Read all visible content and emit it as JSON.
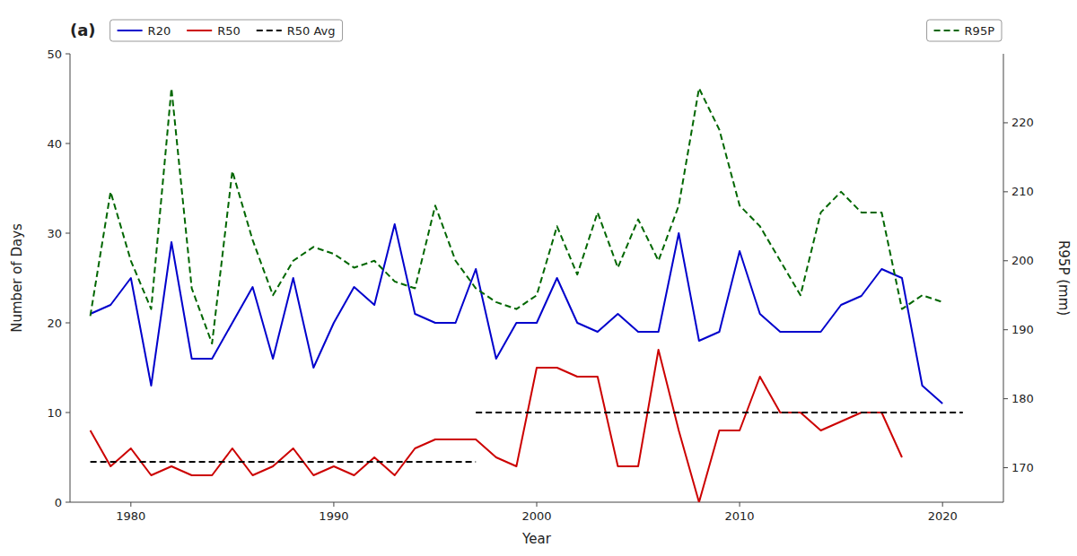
{
  "chart_data": {
    "type": "line",
    "title": "(a)",
    "xlabel": "Year",
    "ylabel": "Number of Days",
    "y2label": "R95P (mm)",
    "x": [
      1978,
      1979,
      1980,
      1981,
      1982,
      1983,
      1984,
      1985,
      1986,
      1987,
      1988,
      1989,
      1990,
      1991,
      1992,
      1993,
      1994,
      1995,
      1996,
      1997,
      1998,
      1999,
      2000,
      2001,
      2002,
      2003,
      2004,
      2005,
      2006,
      2007,
      2008,
      2009,
      2010,
      2011,
      2012,
      2013,
      2014,
      2015,
      2016,
      2017,
      2018,
      2019,
      2020,
      2021,
      2022
    ],
    "series": [
      {
        "name": "R20",
        "color": "#0000cc",
        "line_style": "solid",
        "values": [
          21,
          22,
          25,
          13,
          29,
          16,
          16,
          20,
          24,
          16,
          25,
          15,
          20,
          24,
          22,
          31,
          21,
          20,
          20,
          26,
          16,
          20,
          20,
          25,
          20,
          19,
          21,
          19,
          19,
          30,
          18,
          19,
          28,
          21,
          19,
          19,
          19,
          22,
          23,
          26,
          25,
          13,
          11,
          null,
          null
        ]
      },
      {
        "name": "R50",
        "color": "#cc0000",
        "line_style": "solid",
        "values": [
          8,
          4,
          6,
          3,
          4,
          3,
          3,
          6,
          3,
          4,
          6,
          3,
          4,
          3,
          5,
          3,
          6,
          7,
          7,
          7,
          5,
          4,
          15,
          15,
          14,
          14,
          4,
          4,
          17,
          8,
          0,
          8,
          8,
          14,
          10,
          10,
          8,
          9,
          10,
          10,
          5,
          null,
          null,
          null,
          null
        ]
      },
      {
        "name": "R50 Avg",
        "color": "#000000",
        "line_style": "dashed",
        "x": [
          1978,
          1997,
          1997,
          1997,
          2021
        ],
        "values": [
          4.5,
          4.5,
          null,
          10.0,
          10.0
        ]
      },
      {
        "name": "R95P",
        "color": "#006600",
        "line_style": "dashed",
        "axis": "y2",
        "values": [
          192,
          210,
          200,
          193,
          225,
          196,
          188,
          213,
          203,
          195,
          200,
          202,
          201,
          199,
          200,
          197,
          196,
          208,
          200,
          196,
          194,
          193,
          195,
          205,
          198,
          207,
          199,
          206,
          200,
          208,
          225,
          219,
          208,
          205,
          200,
          195,
          207,
          210,
          207,
          207,
          193,
          195,
          194,
          null,
          null
        ]
      }
    ],
    "xlim": [
      1977,
      2023
    ],
    "xticks": [
      1980,
      1990,
      2000,
      2010,
      2020
    ],
    "ylim": [
      0,
      50
    ],
    "yticks": [
      0,
      10,
      20,
      30,
      40,
      50
    ],
    "y2lim": [
      165,
      230
    ],
    "y2ticks": [
      170,
      180,
      190,
      200,
      210,
      220
    ],
    "grid": false,
    "legend": "upper left"
  }
}
